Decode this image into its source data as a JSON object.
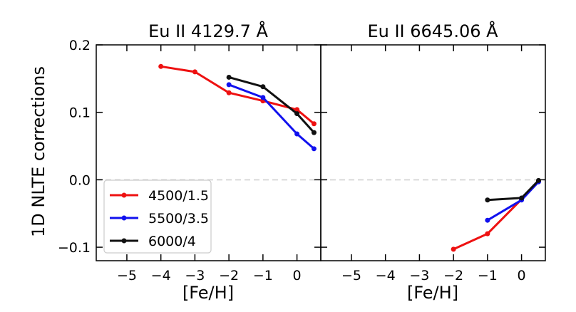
{
  "chart_data": {
    "type": "line",
    "ylabel": "1D NLTE corrections",
    "panels": [
      {
        "title": "Eu II 4129.7 Å",
        "xlabel": "[Fe/H]",
        "xlim": [
          -5.9,
          0.7
        ],
        "ylim": [
          -0.12,
          0.2
        ],
        "xticks": [
          -5,
          -4,
          -3,
          -2,
          -1,
          0
        ],
        "xtick_labels": [
          "−5",
          "−4",
          "−3",
          "−2",
          "−1",
          "0"
        ],
        "yticks": [
          -0.1,
          0.0,
          0.1,
          0.2
        ],
        "ytick_labels": [
          "−0.1",
          "0.0",
          "0.1",
          "0.2"
        ],
        "zero_line": true,
        "series": [
          {
            "name": "4500/1.5",
            "color": "#ee1111",
            "x": [
              -4,
              -3,
              -2,
              -1,
              0,
              0.5
            ],
            "y": [
              0.168,
              0.16,
              0.129,
              0.117,
              0.104,
              0.083
            ]
          },
          {
            "name": "5500/3.5",
            "color": "#1111ee",
            "x": [
              -2,
              -1,
              0,
              0.5
            ],
            "y": [
              0.141,
              0.122,
              0.068,
              0.046
            ]
          },
          {
            "name": "6000/4",
            "color": "#111111",
            "x": [
              -2,
              -1,
              0,
              0.5
            ],
            "y": [
              0.152,
              0.138,
              0.098,
              0.07
            ]
          }
        ]
      },
      {
        "title": "Eu II 6645.06 Å",
        "xlabel": "[Fe/H]",
        "xlim": [
          -5.9,
          0.7
        ],
        "ylim": [
          -0.12,
          0.2
        ],
        "xticks": [
          -5,
          -4,
          -3,
          -2,
          -1,
          0
        ],
        "xtick_labels": [
          "−5",
          "−4",
          "−3",
          "−2",
          "−1",
          "0"
        ],
        "zero_line": true,
        "series": [
          {
            "name": "4500/1.5",
            "color": "#ee1111",
            "x": [
              -2,
              -1,
              0,
              0.5
            ],
            "y": [
              -0.103,
              -0.08,
              -0.029,
              -0.002
            ]
          },
          {
            "name": "5500/3.5",
            "color": "#1111ee",
            "x": [
              -1,
              0,
              0.5
            ],
            "y": [
              -0.06,
              -0.03,
              -0.003
            ]
          },
          {
            "name": "6000/4",
            "color": "#111111",
            "x": [
              -1,
              0,
              0.5
            ],
            "y": [
              -0.03,
              -0.027,
              -0.001
            ]
          }
        ]
      }
    ],
    "legend": {
      "placement": "lower-left",
      "panel": 0,
      "entries": [
        "4500/1.5",
        "5500/3.5",
        "6000/4"
      ]
    }
  }
}
